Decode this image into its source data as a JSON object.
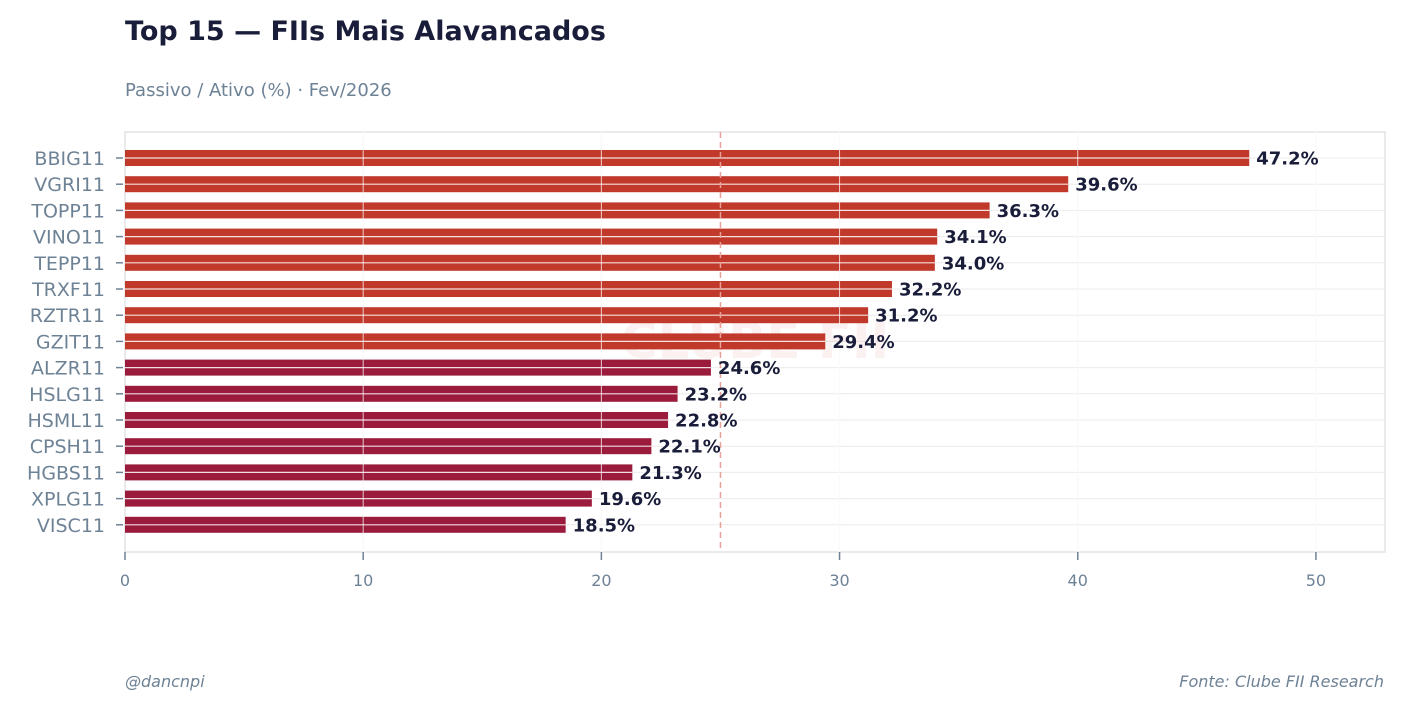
{
  "header": {
    "title": "Top 15 — FIIs Mais Alavancados",
    "subtitle": "Passivo / Ativo (%) · Fev/2026"
  },
  "footer": {
    "handle": "@dancnpi",
    "source": "Fonte: Clube FII Research"
  },
  "watermark": "CLUBE FII",
  "chart_data": {
    "type": "bar",
    "orientation": "horizontal",
    "categories": [
      "BBIG11",
      "VGRI11",
      "TOPP11",
      "VINO11",
      "TEPP11",
      "TRXF11",
      "RZTR11",
      "GZIT11",
      "ALZR11",
      "HSLG11",
      "HSML11",
      "CPSH11",
      "HGBS11",
      "XPLG11",
      "VISC11"
    ],
    "values": [
      47.2,
      39.6,
      36.3,
      34.1,
      34.0,
      32.2,
      31.2,
      29.4,
      24.6,
      23.2,
      22.8,
      22.1,
      21.3,
      19.6,
      18.5
    ],
    "value_labels": [
      "47.2%",
      "39.6%",
      "36.3%",
      "34.1%",
      "34.0%",
      "32.2%",
      "31.2%",
      "29.4%",
      "24.6%",
      "23.2%",
      "22.8%",
      "22.1%",
      "21.3%",
      "19.6%",
      "18.5%"
    ],
    "xlim": [
      0,
      52.9
    ],
    "xticks": [
      0,
      10,
      20,
      30,
      40,
      50
    ],
    "reference_line": 25,
    "grid": true,
    "colors": {
      "above_reference": "#c0392b",
      "below_reference": "#9b1b3d",
      "reference_line": "#e8a098",
      "grid": "#ebebeb",
      "axis": "#e3e3e3",
      "label": "#1a1d3a",
      "tick": "#6e8296"
    }
  }
}
